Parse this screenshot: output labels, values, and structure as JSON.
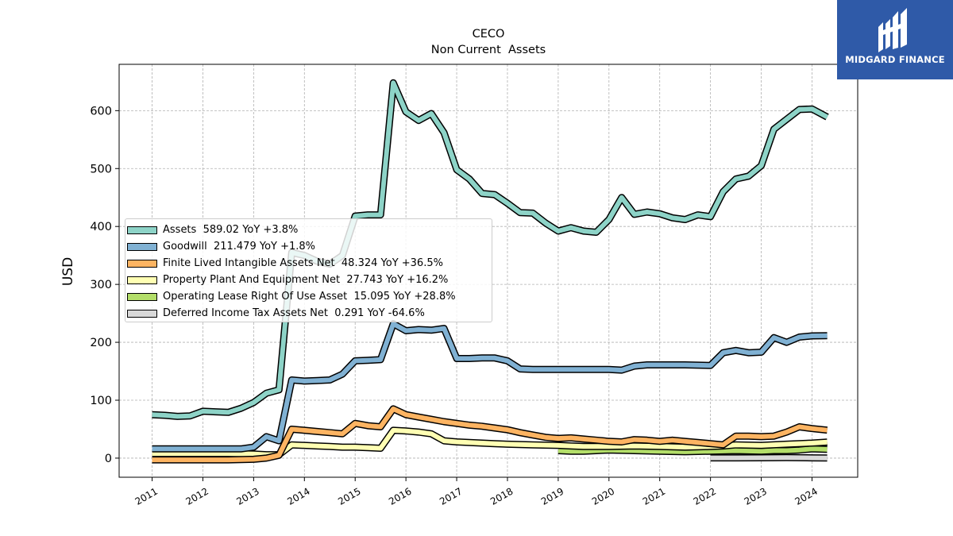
{
  "chart_data": {
    "type": "line",
    "title": "CECO",
    "subtitle": "Non Current  Assets",
    "ylabel": "USD",
    "xlabel": "",
    "ylim": [
      -33,
      680
    ],
    "xlim": [
      2010.35,
      2024.9
    ],
    "yticks": [
      0,
      100,
      200,
      300,
      400,
      500,
      600
    ],
    "xticks": [
      "2011",
      "2012",
      "2013",
      "2014",
      "2015",
      "2016",
      "2017",
      "2018",
      "2019",
      "2020",
      "2021",
      "2022",
      "2023",
      "2024"
    ],
    "grid": true,
    "legend_position": "center-left",
    "series": [
      {
        "name": "Assets  589.02 YoY +3.8%",
        "color": "#8dd3c7",
        "points": [
          [
            2011.0,
            75
          ],
          [
            2011.25,
            74
          ],
          [
            2011.5,
            72
          ],
          [
            2011.75,
            73
          ],
          [
            2012.0,
            81
          ],
          [
            2012.25,
            80
          ],
          [
            2012.5,
            79
          ],
          [
            2012.75,
            86
          ],
          [
            2013.0,
            96
          ],
          [
            2013.25,
            112
          ],
          [
            2013.5,
            118
          ],
          [
            2013.75,
            355
          ],
          [
            2014.0,
            350
          ],
          [
            2014.25,
            340
          ],
          [
            2014.5,
            335
          ],
          [
            2014.75,
            350
          ],
          [
            2015.0,
            418
          ],
          [
            2015.25,
            420
          ],
          [
            2015.5,
            420
          ],
          [
            2015.75,
            648
          ],
          [
            2016.0,
            598
          ],
          [
            2016.25,
            583
          ],
          [
            2016.5,
            595
          ],
          [
            2016.75,
            562
          ],
          [
            2017.0,
            498
          ],
          [
            2017.25,
            482
          ],
          [
            2017.5,
            457
          ],
          [
            2017.75,
            455
          ],
          [
            2018.0,
            440
          ],
          [
            2018.25,
            424
          ],
          [
            2018.5,
            423
          ],
          [
            2018.75,
            406
          ],
          [
            2019.0,
            392
          ],
          [
            2019.25,
            398
          ],
          [
            2019.5,
            392
          ],
          [
            2019.75,
            390
          ],
          [
            2020.0,
            412
          ],
          [
            2020.25,
            450
          ],
          [
            2020.5,
            421
          ],
          [
            2020.75,
            425
          ],
          [
            2021.0,
            422
          ],
          [
            2021.25,
            415
          ],
          [
            2021.5,
            412
          ],
          [
            2021.75,
            420
          ],
          [
            2022.0,
            417
          ],
          [
            2022.25,
            460
          ],
          [
            2022.5,
            482
          ],
          [
            2022.75,
            487
          ],
          [
            2023.0,
            505
          ],
          [
            2023.25,
            568
          ],
          [
            2023.5,
            585
          ],
          [
            2023.75,
            602
          ],
          [
            2024.0,
            603
          ],
          [
            2024.3,
            589
          ]
        ]
      },
      {
        "name": "Goodwill  211.479 YoY +1.8%",
        "color": "#80b1d3",
        "points": [
          [
            2011.0,
            16
          ],
          [
            2011.5,
            16
          ],
          [
            2012.0,
            16
          ],
          [
            2012.5,
            16
          ],
          [
            2012.75,
            16
          ],
          [
            2013.0,
            19
          ],
          [
            2013.25,
            37
          ],
          [
            2013.5,
            30
          ],
          [
            2013.75,
            135
          ],
          [
            2014.0,
            133
          ],
          [
            2014.25,
            134
          ],
          [
            2014.5,
            135
          ],
          [
            2014.75,
            145
          ],
          [
            2015.0,
            168
          ],
          [
            2015.25,
            169
          ],
          [
            2015.5,
            170
          ],
          [
            2015.75,
            232
          ],
          [
            2016.0,
            220
          ],
          [
            2016.25,
            222
          ],
          [
            2016.5,
            221
          ],
          [
            2016.75,
            224
          ],
          [
            2017.0,
            172
          ],
          [
            2017.25,
            172
          ],
          [
            2017.5,
            173
          ],
          [
            2017.75,
            173
          ],
          [
            2018.0,
            168
          ],
          [
            2018.25,
            154
          ],
          [
            2018.5,
            153
          ],
          [
            2019.0,
            153
          ],
          [
            2019.5,
            153
          ],
          [
            2020.0,
            153
          ],
          [
            2020.25,
            152
          ],
          [
            2020.5,
            159
          ],
          [
            2020.75,
            161
          ],
          [
            2021.0,
            161
          ],
          [
            2021.5,
            161
          ],
          [
            2022.0,
            160
          ],
          [
            2022.25,
            182
          ],
          [
            2022.5,
            186
          ],
          [
            2022.75,
            182
          ],
          [
            2023.0,
            183
          ],
          [
            2023.25,
            208
          ],
          [
            2023.5,
            200
          ],
          [
            2023.75,
            209
          ],
          [
            2024.0,
            211
          ],
          [
            2024.3,
            211.5
          ]
        ]
      },
      {
        "name": "Finite Lived Intangible Assets Net  48.324 YoY +36.5%",
        "color": "#fdb462",
        "points": [
          [
            2011.0,
            -3
          ],
          [
            2011.5,
            -3
          ],
          [
            2012.0,
            -3
          ],
          [
            2012.5,
            -3
          ],
          [
            2013.0,
            -2
          ],
          [
            2013.25,
            0
          ],
          [
            2013.5,
            5
          ],
          [
            2013.75,
            50
          ],
          [
            2014.0,
            48
          ],
          [
            2014.25,
            46
          ],
          [
            2014.5,
            44
          ],
          [
            2014.75,
            42
          ],
          [
            2015.0,
            60
          ],
          [
            2015.25,
            56
          ],
          [
            2015.5,
            54
          ],
          [
            2015.75,
            85
          ],
          [
            2016.0,
            75
          ],
          [
            2016.25,
            71
          ],
          [
            2016.5,
            67
          ],
          [
            2016.75,
            63
          ],
          [
            2017.0,
            60
          ],
          [
            2017.25,
            57
          ],
          [
            2017.5,
            55
          ],
          [
            2017.75,
            52
          ],
          [
            2018.0,
            49
          ],
          [
            2018.25,
            44
          ],
          [
            2018.5,
            40
          ],
          [
            2018.75,
            36
          ],
          [
            2019.0,
            34
          ],
          [
            2019.25,
            35
          ],
          [
            2019.5,
            33
          ],
          [
            2019.75,
            31
          ],
          [
            2020.0,
            29
          ],
          [
            2020.25,
            28
          ],
          [
            2020.5,
            32
          ],
          [
            2020.75,
            31
          ],
          [
            2021.0,
            29
          ],
          [
            2021.25,
            31
          ],
          [
            2021.5,
            29
          ],
          [
            2021.75,
            27
          ],
          [
            2022.0,
            25
          ],
          [
            2022.25,
            23
          ],
          [
            2022.5,
            38
          ],
          [
            2022.75,
            38
          ],
          [
            2023.0,
            37
          ],
          [
            2023.25,
            38
          ],
          [
            2023.5,
            45
          ],
          [
            2023.75,
            54
          ],
          [
            2024.0,
            51
          ],
          [
            2024.3,
            48.3
          ]
        ]
      },
      {
        "name": "Property Plant And Equipment Net  27.743 YoY +16.2%",
        "color": "#ffffb3",
        "points": [
          [
            2011.0,
            8
          ],
          [
            2011.5,
            8
          ],
          [
            2012.0,
            8
          ],
          [
            2012.5,
            8
          ],
          [
            2013.0,
            7
          ],
          [
            2013.25,
            6
          ],
          [
            2013.5,
            6
          ],
          [
            2013.75,
            23
          ],
          [
            2014.0,
            22
          ],
          [
            2014.25,
            21
          ],
          [
            2014.5,
            20
          ],
          [
            2014.75,
            19
          ],
          [
            2015.0,
            19
          ],
          [
            2015.25,
            18
          ],
          [
            2015.5,
            17
          ],
          [
            2015.75,
            48
          ],
          [
            2016.0,
            47
          ],
          [
            2016.25,
            45
          ],
          [
            2016.5,
            42
          ],
          [
            2016.75,
            30
          ],
          [
            2017.0,
            28
          ],
          [
            2017.25,
            27
          ],
          [
            2017.5,
            26
          ],
          [
            2017.75,
            25
          ],
          [
            2018.0,
            24
          ],
          [
            2018.5,
            23
          ],
          [
            2019.0,
            22
          ],
          [
            2019.25,
            21
          ],
          [
            2019.5,
            20
          ],
          [
            2020.0,
            20
          ],
          [
            2020.5,
            21
          ],
          [
            2021.0,
            20
          ],
          [
            2021.5,
            19
          ],
          [
            2022.0,
            20
          ],
          [
            2022.25,
            21
          ],
          [
            2022.5,
            23
          ],
          [
            2023.0,
            22
          ],
          [
            2023.5,
            24
          ],
          [
            2024.0,
            26
          ],
          [
            2024.3,
            27.7
          ]
        ]
      },
      {
        "name": "Operating Lease Right Of Use Asset  15.095 YoY +28.8%",
        "color": "#b3de69",
        "points": [
          [
            2019.0,
            13
          ],
          [
            2019.25,
            12
          ],
          [
            2019.5,
            12
          ],
          [
            2019.75,
            13
          ],
          [
            2020.0,
            14
          ],
          [
            2020.5,
            13
          ],
          [
            2021.0,
            12
          ],
          [
            2021.5,
            11
          ],
          [
            2022.0,
            12
          ],
          [
            2022.5,
            13
          ],
          [
            2023.0,
            12
          ],
          [
            2023.25,
            13
          ],
          [
            2023.5,
            13
          ],
          [
            2023.75,
            14
          ],
          [
            2024.0,
            16
          ],
          [
            2024.3,
            15.1
          ]
        ]
      },
      {
        "name": "Deferred Income Tax Assets Net  0.291 YoY -64.6%",
        "color": "#d9d9d9",
        "points": [
          [
            2022.0,
            0.5
          ],
          [
            2022.5,
            0.5
          ],
          [
            2023.0,
            0.6
          ],
          [
            2023.5,
            0.8
          ],
          [
            2024.0,
            0.4
          ],
          [
            2024.3,
            0.29
          ]
        ]
      }
    ]
  },
  "logo": {
    "text": "MIDGARD FINANCE",
    "background": "#2f5aa8"
  }
}
